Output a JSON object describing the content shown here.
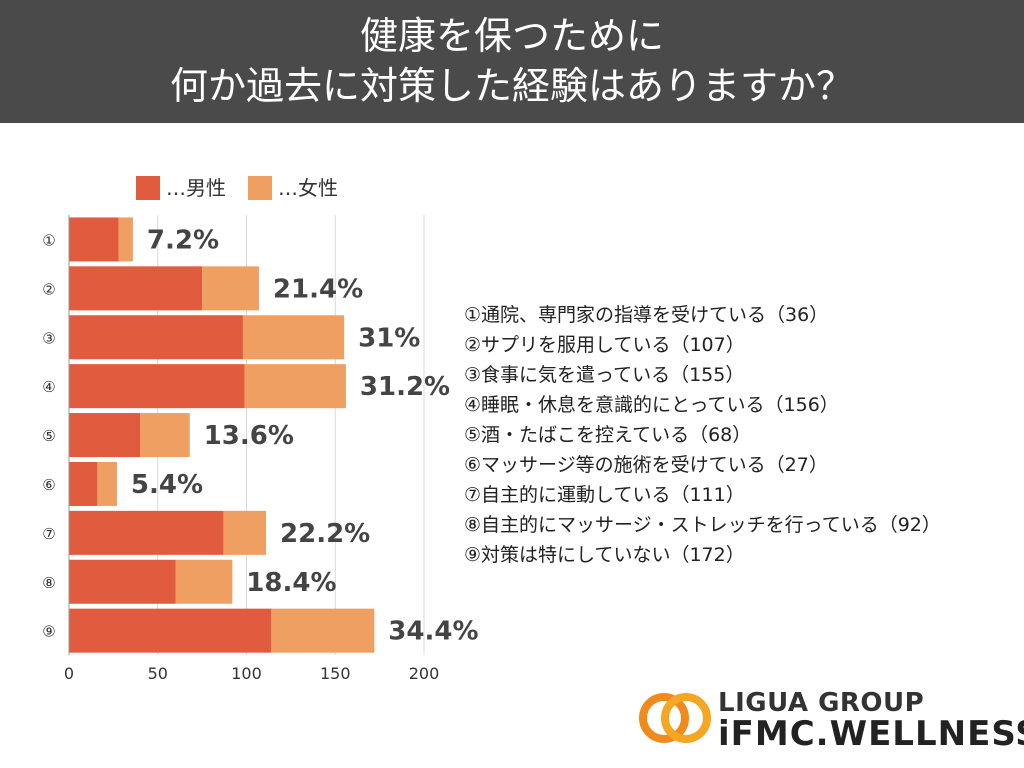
{
  "header": {
    "title_line1": "健康を保つために",
    "title_line2": "何か過去に対策した経験はありますか？"
  },
  "colors": {
    "male": "#e15b3e",
    "female": "#ef9f61",
    "header_bg": "#4a4a4a"
  },
  "legend": {
    "male": "…男性",
    "female": "…女性"
  },
  "chart_data": {
    "type": "bar",
    "orientation": "horizontal",
    "stacked": true,
    "categories": [
      "①",
      "②",
      "③",
      "④",
      "⑤",
      "⑥",
      "⑦",
      "⑧",
      "⑨"
    ],
    "series": [
      {
        "name": "…男性",
        "values": [
          28,
          75,
          98,
          99,
          40,
          16,
          87,
          60,
          114
        ]
      },
      {
        "name": "…女性",
        "values": [
          8,
          32,
          57,
          57,
          28,
          11,
          24,
          32,
          58
        ]
      }
    ],
    "percent_labels": [
      "7.2%",
      "21.4%",
      "31%",
      "31.2%",
      "13.6%",
      "5.4%",
      "22.2%",
      "18.4%",
      "34.4%"
    ],
    "xlim": [
      0,
      200
    ],
    "xticks": [
      "0",
      "50",
      "100",
      "150",
      "200"
    ],
    "grid": true
  },
  "list": [
    "①通院、専門家の指導を受けている（36）",
    "②サプリを服用している（107）",
    "③食事に気を遣っている（155）",
    "④睡眠・休息を意識的にとっている（156）",
    "⑤酒・たばこを控えている（68）",
    "⑥マッサージ等の施術を受けている（27）",
    "⑦自主的に運動している（111）",
    "⑧自主的にマッサージ・ストレッチを行っている（92）",
    "⑨対策は特にしていない（172）"
  ],
  "logo": {
    "line1": "LIGUA GROUP",
    "line2": "iFMC.WELLNESS"
  }
}
